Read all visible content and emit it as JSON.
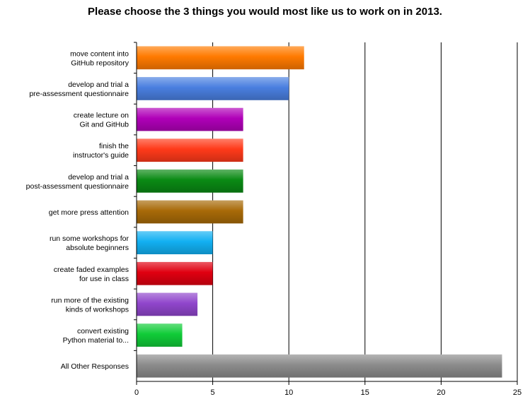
{
  "chart_data": {
    "type": "bar",
    "orientation": "horizontal",
    "title": "Please choose the 3 things you would most like us to work on in 2013.",
    "xlabel": "",
    "ylabel": "",
    "xlim": [
      0,
      25
    ],
    "x_ticks": [
      "0",
      "5",
      "10",
      "15",
      "20",
      "25"
    ],
    "grid": "vertical major gridlines",
    "categories": [
      [
        "move content into",
        "GitHub repository"
      ],
      [
        "develop and trial a",
        "pre-assessment questionnaire"
      ],
      [
        "create lecture on",
        "Git and GitHub"
      ],
      [
        "finish the",
        "instructor's guide"
      ],
      [
        "develop and trial a",
        "post-assessment questionnaire"
      ],
      [
        "get more press attention"
      ],
      [
        "run some workshops for",
        "absolute beginners"
      ],
      [
        "create faded examples",
        "for use in class"
      ],
      [
        "run more of the existing",
        "kinds of workshops"
      ],
      [
        "convert existing",
        "Python material to..."
      ],
      [
        "All Other Responses"
      ]
    ],
    "values": [
      11,
      10,
      7,
      7,
      7,
      7,
      5,
      5,
      4,
      3,
      24
    ],
    "colors": [
      "#ff7a00",
      "#4a7fe0",
      "#b000b8",
      "#ff3a1a",
      "#0a8a14",
      "#a86a08",
      "#12b0f2",
      "#e00010",
      "#9046cc",
      "#10cc38",
      "#8c8c8c"
    ]
  }
}
